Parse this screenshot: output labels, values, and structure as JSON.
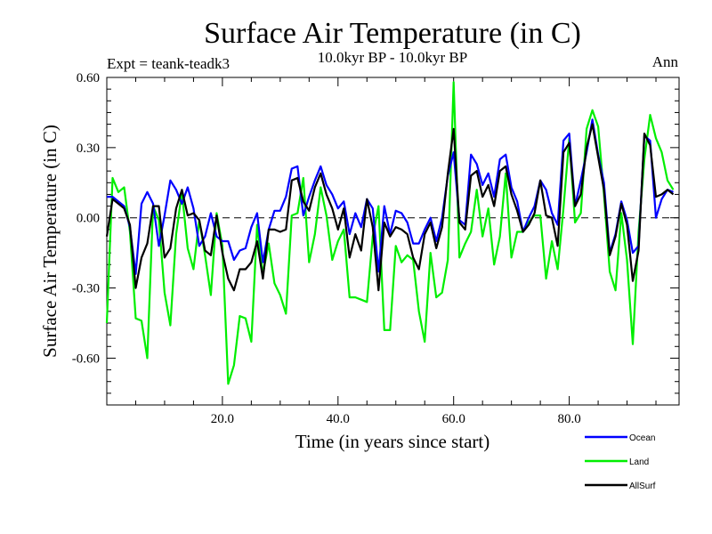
{
  "colors": {
    "ocean": "#0000ff",
    "land": "#00ee00",
    "allsurf": "#000000",
    "zero_line": "#000000"
  },
  "chart_data": {
    "type": "line",
    "title": "Surface Air Temperature (in C)",
    "subtitle": "10.0kyr BP - 10.0kyr BP",
    "left_label": "Expt = teank-teadk3",
    "right_label": "Ann",
    "xlabel": "Time (in years since start)",
    "ylabel": "Surface Air Temperature (in C)",
    "xlim": [
      0,
      99
    ],
    "ylim": [
      -0.8,
      0.6
    ],
    "x_ticks": [
      {
        "value": 20,
        "label": "20.0"
      },
      {
        "value": 40,
        "label": "40.0"
      },
      {
        "value": 60,
        "label": "60.0"
      },
      {
        "value": 80,
        "label": "80.0"
      }
    ],
    "y_ticks": [
      {
        "value": 0.6,
        "label": "0.60"
      },
      {
        "value": 0.3,
        "label": "0.30"
      },
      {
        "value": 0.0,
        "label": "0.00"
      },
      {
        "value": -0.3,
        "label": "-0.30"
      },
      {
        "value": -0.6,
        "label": "-0.60"
      }
    ],
    "zero_line": 0.0,
    "x_start": 0,
    "series": [
      {
        "name": "Ocean",
        "color_key": "ocean",
        "values": [
          0.09,
          0.09,
          0.07,
          0.05,
          -0.04,
          -0.24,
          0.06,
          0.11,
          0.06,
          -0.12,
          0.01,
          0.16,
          0.12,
          0.06,
          0.13,
          0.04,
          -0.12,
          -0.08,
          0.02,
          -0.08,
          -0.1,
          -0.1,
          -0.18,
          -0.14,
          -0.13,
          -0.04,
          0.02,
          -0.19,
          -0.05,
          0.03,
          0.03,
          0.09,
          0.21,
          0.22,
          0.01,
          0.09,
          0.16,
          0.22,
          0.14,
          0.1,
          0.04,
          0.07,
          -0.07,
          0.02,
          -0.04,
          0.08,
          0.04,
          -0.23,
          0.05,
          -0.07,
          0.03,
          0.02,
          -0.02,
          -0.11,
          -0.11,
          -0.05,
          0.0,
          -0.1,
          0.0,
          0.18,
          0.28,
          -0.01,
          -0.03,
          0.27,
          0.23,
          0.14,
          0.19,
          0.09,
          0.25,
          0.27,
          0.13,
          0.07,
          -0.06,
          0.0,
          0.05,
          0.16,
          0.12,
          0.02,
          -0.03,
          0.33,
          0.36,
          0.05,
          0.16,
          0.28,
          0.42,
          0.27,
          0.15,
          -0.15,
          -0.07,
          0.07,
          -0.01,
          -0.15,
          -0.12,
          0.35,
          0.33,
          0.0,
          0.08,
          0.12,
          0.11
        ]
      },
      {
        "name": "Land",
        "color_key": "land",
        "values": [
          -0.45,
          0.17,
          0.11,
          0.13,
          -0.06,
          -0.43,
          -0.44,
          -0.6,
          0.05,
          -0.01,
          -0.32,
          -0.46,
          -0.07,
          0.11,
          -0.13,
          -0.22,
          -0.01,
          -0.16,
          -0.33,
          0.02,
          -0.12,
          -0.71,
          -0.63,
          -0.42,
          -0.43,
          -0.53,
          -0.03,
          -0.24,
          -0.11,
          -0.28,
          -0.33,
          -0.41,
          0.01,
          0.02,
          0.17,
          -0.19,
          -0.07,
          0.13,
          0.01,
          -0.18,
          -0.1,
          -0.05,
          -0.34,
          -0.34,
          -0.35,
          -0.36,
          -0.08,
          0.05,
          -0.48,
          -0.48,
          -0.12,
          -0.19,
          -0.16,
          -0.18,
          -0.4,
          -0.53,
          -0.15,
          -0.34,
          -0.32,
          -0.18,
          0.58,
          -0.17,
          -0.11,
          -0.06,
          0.12,
          -0.08,
          0.04,
          -0.2,
          -0.08,
          0.19,
          -0.17,
          -0.06,
          -0.06,
          -0.02,
          0.01,
          0.01,
          -0.26,
          -0.1,
          -0.22,
          0.04,
          0.34,
          -0.02,
          0.02,
          0.38,
          0.46,
          0.39,
          0.1,
          -0.23,
          -0.31,
          0.02,
          -0.18,
          -0.54,
          -0.06,
          0.25,
          0.44,
          0.34,
          0.28,
          0.16,
          0.12
        ]
      },
      {
        "name": "AllSurf",
        "color_key": "allsurf",
        "values": [
          -0.08,
          0.08,
          0.06,
          0.04,
          -0.03,
          -0.3,
          -0.17,
          -0.11,
          0.05,
          0.05,
          -0.17,
          -0.13,
          0.04,
          0.12,
          0.01,
          0.02,
          -0.01,
          -0.14,
          -0.16,
          0.01,
          -0.15,
          -0.26,
          -0.31,
          -0.22,
          -0.22,
          -0.19,
          -0.1,
          -0.26,
          -0.05,
          -0.05,
          -0.06,
          -0.05,
          0.16,
          0.17,
          0.07,
          0.03,
          0.13,
          0.19,
          0.1,
          0.04,
          -0.05,
          0.04,
          -0.17,
          -0.07,
          -0.14,
          0.08,
          -0.04,
          -0.31,
          -0.02,
          -0.08,
          -0.04,
          -0.05,
          -0.07,
          -0.17,
          -0.22,
          -0.07,
          -0.02,
          -0.13,
          -0.04,
          0.19,
          0.38,
          -0.02,
          -0.05,
          0.18,
          0.2,
          0.09,
          0.14,
          0.05,
          0.2,
          0.22,
          0.1,
          0.03,
          -0.06,
          -0.03,
          0.02,
          0.16,
          0.01,
          0.0,
          -0.12,
          0.28,
          0.32,
          0.05,
          0.1,
          0.3,
          0.4,
          0.26,
          0.12,
          -0.16,
          -0.08,
          0.06,
          -0.03,
          -0.27,
          -0.14,
          0.36,
          0.31,
          0.09,
          0.1,
          0.12,
          0.1
        ]
      }
    ],
    "legend": [
      {
        "label": "Ocean",
        "color_key": "ocean"
      },
      {
        "label": "Land",
        "color_key": "land"
      },
      {
        "label": "AllSurf",
        "color_key": "allsurf"
      }
    ]
  }
}
